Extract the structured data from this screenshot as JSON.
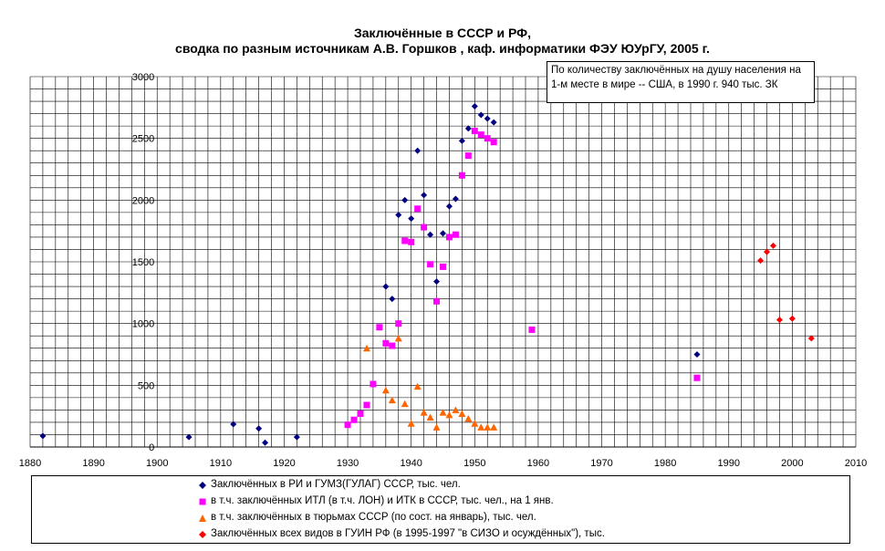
{
  "title_line1": "Заключённые в СССР и РФ,",
  "title_line2": "сводка по разным источникам А.В. Горшков , каф. информатики ФЭУ ЮУрГУ, 2005 г.",
  "note": "По количеству заключённых на душу населения на 1-м месте в мире -- США, в 1990 г. 940 тыс. ЗК",
  "chart_data": {
    "type": "scatter",
    "xlim": [
      1880,
      2010
    ],
    "ylim": [
      0,
      3000
    ],
    "xticks": [
      "1880",
      "1890",
      "1900",
      "1910",
      "1920",
      "1930",
      "1940",
      "1950",
      "1960",
      "1970",
      "1980",
      "1990",
      "2000",
      "2010"
    ],
    "yticks": [
      "0",
      "500",
      "1000",
      "1500",
      "2000",
      "2500",
      "3000"
    ],
    "grid": true,
    "legend_position": "bottom",
    "series": [
      {
        "name": "Заключённых в РИ и ГУМЗ(ГУЛАГ) СССР, тыс. чел.",
        "color": "#000080",
        "marker": "diamond",
        "points": [
          [
            1882,
            90
          ],
          [
            1905,
            80
          ],
          [
            1912,
            185
          ],
          [
            1916,
            150
          ],
          [
            1917,
            35
          ],
          [
            1922,
            80
          ],
          [
            1936,
            1300
          ],
          [
            1937,
            1200
          ],
          [
            1938,
            1880
          ],
          [
            1939,
            2000
          ],
          [
            1940,
            1850
          ],
          [
            1941,
            2400
          ],
          [
            1942,
            2040
          ],
          [
            1943,
            1720
          ],
          [
            1944,
            1340
          ],
          [
            1945,
            1730
          ],
          [
            1946,
            1950
          ],
          [
            1947,
            2010
          ],
          [
            1948,
            2480
          ],
          [
            1949,
            2580
          ],
          [
            1950,
            2760
          ],
          [
            1951,
            2690
          ],
          [
            1952,
            2660
          ],
          [
            1953,
            2630
          ],
          [
            1985,
            750
          ]
        ]
      },
      {
        "name": "в т.ч. заключённых ИТЛ (в т.ч. ЛОН) и ИТК в СССР, тыс. чел., на 1 янв.",
        "color": "#ff00ff",
        "marker": "square",
        "points": [
          [
            1930,
            180
          ],
          [
            1931,
            220
          ],
          [
            1932,
            270
          ],
          [
            1933,
            340
          ],
          [
            1934,
            510
          ],
          [
            1935,
            970
          ],
          [
            1936,
            840
          ],
          [
            1937,
            820
          ],
          [
            1938,
            1000
          ],
          [
            1939,
            1670
          ],
          [
            1940,
            1660
          ],
          [
            1941,
            1930
          ],
          [
            1942,
            1780
          ],
          [
            1943,
            1480
          ],
          [
            1944,
            1180
          ],
          [
            1945,
            1460
          ],
          [
            1946,
            1700
          ],
          [
            1947,
            1720
          ],
          [
            1948,
            2200
          ],
          [
            1949,
            2360
          ],
          [
            1950,
            2560
          ],
          [
            1951,
            2530
          ],
          [
            1952,
            2500
          ],
          [
            1953,
            2470
          ],
          [
            1959,
            950
          ],
          [
            1985,
            560
          ]
        ]
      },
      {
        "name": "в т.ч. заключённых в тюрьмах СССР (по сост. на январь), тыс. чел.",
        "color": "#ff6600",
        "marker": "triangle",
        "points": [
          [
            1933,
            800
          ],
          [
            1936,
            460
          ],
          [
            1937,
            380
          ],
          [
            1938,
            880
          ],
          [
            1939,
            350
          ],
          [
            1940,
            190
          ],
          [
            1941,
            490
          ],
          [
            1942,
            280
          ],
          [
            1943,
            240
          ],
          [
            1944,
            160
          ],
          [
            1945,
            280
          ],
          [
            1946,
            260
          ],
          [
            1947,
            300
          ],
          [
            1948,
            270
          ],
          [
            1949,
            230
          ],
          [
            1950,
            190
          ],
          [
            1951,
            160
          ],
          [
            1952,
            160
          ],
          [
            1953,
            160
          ]
        ]
      },
      {
        "name": "Заключённых всех видов в ГУИН РФ (в 1995-1997 \"в СИЗО и осуждённых\"), тыс.",
        "color": "#ff0000",
        "marker": "diamond",
        "points": [
          [
            1995,
            1510
          ],
          [
            1996,
            1580
          ],
          [
            1997,
            1630
          ],
          [
            1998,
            1030
          ],
          [
            2000,
            1040
          ],
          [
            2003,
            880
          ]
        ]
      }
    ]
  }
}
